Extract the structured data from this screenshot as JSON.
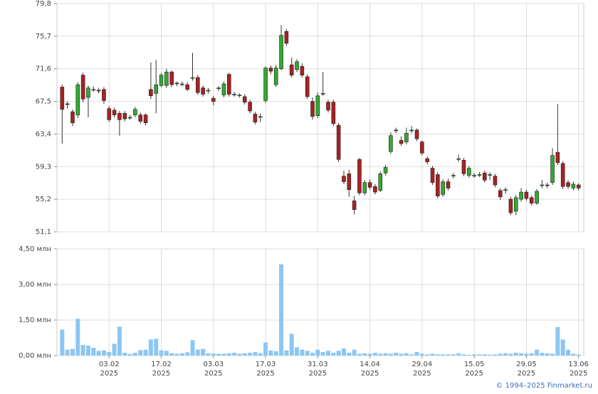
{
  "chart_data": {
    "type": "candlestick",
    "up_color": "#33a833",
    "down_color": "#a82222",
    "volume_color": "#8cc6f2",
    "grid": true,
    "xlim": [
      -1,
      100
    ],
    "xticks": [
      {
        "value": 9,
        "label": "03.02",
        "sublabel": "2025"
      },
      {
        "value": 19,
        "label": "17.02",
        "sublabel": "2025"
      },
      {
        "value": 29,
        "label": "03.03",
        "sublabel": "2025"
      },
      {
        "value": 39,
        "label": "17.03",
        "sublabel": "2025"
      },
      {
        "value": 49,
        "label": "31.03",
        "sublabel": "2025"
      },
      {
        "value": 59,
        "label": "14.04",
        "sublabel": "2025"
      },
      {
        "value": 69,
        "label": "29.04",
        "sublabel": "2025"
      },
      {
        "value": 79,
        "label": "15.05",
        "sublabel": "2025"
      },
      {
        "value": 89,
        "label": "29.05",
        "sublabel": "2025"
      },
      {
        "value": 99,
        "label": "13.06",
        "sublabel": "2025"
      }
    ],
    "ylim": [
      51.1,
      79.8
    ],
    "yticks": [
      {
        "value": 79.8,
        "label": "79,8"
      },
      {
        "value": 75.7,
        "label": "75,7"
      },
      {
        "value": 71.6,
        "label": "71,6"
      },
      {
        "value": 67.5,
        "label": "67,5"
      },
      {
        "value": 63.4,
        "label": "63,4"
      },
      {
        "value": 59.3,
        "label": "59,3"
      },
      {
        "value": 55.2,
        "label": "55,2"
      },
      {
        "value": 51.1,
        "label": "51,1"
      }
    ],
    "y2lim": [
      0,
      4.5
    ],
    "y2ticks": [
      {
        "value": 4.5,
        "label": "4,50 млн"
      },
      {
        "value": 3,
        "label": "3,00 млн"
      },
      {
        "value": 1.5,
        "label": "1,50 млн"
      },
      {
        "value": 0,
        "label": "0,00 млн"
      }
    ],
    "open": [
      69.3,
      67.2,
      66.2,
      65.8,
      70.8,
      68.0,
      69.0,
      68.9,
      69.0,
      66.6,
      66.4,
      66.0,
      66.0,
      65.4,
      65.8,
      65.8,
      65.8,
      69.0,
      68.5,
      69.5,
      69.5,
      71.2,
      69.8,
      69.6,
      69.6,
      70.4,
      70.5,
      69.2,
      68.8,
      67.9,
      69.1,
      68.3,
      70.9,
      68.3,
      68.2,
      68.1,
      67.4,
      65.9,
      65.5,
      67.6,
      71.7,
      69.6,
      71.6,
      76.3,
      72.1,
      71.5,
      71.9,
      70.6,
      67.5,
      65.7,
      68.4,
      67.4,
      67.4,
      64.5,
      58.1,
      58.4,
      55.0,
      60.2,
      56.0,
      57.3,
      56.8,
      56.3,
      58.5,
      61.2,
      63.9,
      62.6,
      62.4,
      63.8,
      63.9,
      62.4,
      60.3,
      59.1,
      58.3,
      55.8,
      57.4,
      58.1,
      60.2,
      60.1,
      58.2,
      58.1,
      58.2,
      58.5,
      58.2,
      58.1,
      56.3,
      56.3,
      55.2,
      53.7,
      55.2,
      56.1,
      55.4,
      54.7,
      56.9,
      57.0,
      57.3,
      61.1,
      59.7,
      57.3,
      56.6,
      57.0
    ],
    "high": [
      69.6,
      67.5,
      66.5,
      69.9,
      71.1,
      69.5,
      69.4,
      69.2,
      69.3,
      66.9,
      66.7,
      66.3,
      66.3,
      65.8,
      66.8,
      66.1,
      66.0,
      72.4,
      72.7,
      71.1,
      71.6,
      71.4,
      70.0,
      70.0,
      69.9,
      73.6,
      70.8,
      69.5,
      69.2,
      68.2,
      69.4,
      70.0,
      71.1,
      68.7,
      68.5,
      68.4,
      67.7,
      66.2,
      66.0,
      71.9,
      72.0,
      72.1,
      77.1,
      76.6,
      73.0,
      72.8,
      72.3,
      70.9,
      68.0,
      68.6,
      71.2,
      67.7,
      67.7,
      64.8,
      58.8,
      58.9,
      55.6,
      60.4,
      57.6,
      57.7,
      57.1,
      58.7,
      59.5,
      63.6,
      64.2,
      63.1,
      64.2,
      64.4,
      64.1,
      62.6,
      60.6,
      59.4,
      58.6,
      57.7,
      57.8,
      58.5,
      60.8,
      60.4,
      59.4,
      58.5,
      58.6,
      58.8,
      58.6,
      58.4,
      56.6,
      56.7,
      55.5,
      55.7,
      56.6,
      56.4,
      55.7,
      56.5,
      57.6,
      57.3,
      61.6,
      67.2,
      60.0,
      57.6,
      57.4,
      57.2
    ],
    "low": [
      62.2,
      66.6,
      64.4,
      65.4,
      67.4,
      65.5,
      68.7,
      68.5,
      67.2,
      64.9,
      65.5,
      63.2,
      65.0,
      65.2,
      65.5,
      64.7,
      64.5,
      67.8,
      66.0,
      69.3,
      69.2,
      69.3,
      69.4,
      69.4,
      68.8,
      70.1,
      68.3,
      68.1,
      68.5,
      67.0,
      68.8,
      68.0,
      68.1,
      68.1,
      68.0,
      67.1,
      66.0,
      64.6,
      64.9,
      67.3,
      70.9,
      69.3,
      71.4,
      74.5,
      70.5,
      71.2,
      70.5,
      67.8,
      65.2,
      65.4,
      68.2,
      66.1,
      64.4,
      59.9,
      57.1,
      55.5,
      53.3,
      55.7,
      55.7,
      56.4,
      55.8,
      56.1,
      58.2,
      60.9,
      63.5,
      61.9,
      62.1,
      63.5,
      62.5,
      60.7,
      59.6,
      57.0,
      55.3,
      55.5,
      56.3,
      57.8,
      59.9,
      58.1,
      57.9,
      57.9,
      58.0,
      57.3,
      57.6,
      56.7,
      55.1,
      55.9,
      53.2,
      53.2,
      54.9,
      55.0,
      54.4,
      54.5,
      56.6,
      56.6,
      57.0,
      59.5,
      56.5,
      56.5,
      56.3,
      56.3
    ],
    "close": [
      66.5,
      67.1,
      64.8,
      69.6,
      67.8,
      69.2,
      69.0,
      68.8,
      67.6,
      65.2,
      65.8,
      65.2,
      65.3,
      65.5,
      66.5,
      65.0,
      64.8,
      68.2,
      69.6,
      70.8,
      71.2,
      69.6,
      69.7,
      69.7,
      69.0,
      70.5,
      68.6,
      68.4,
      68.9,
      67.5,
      69.2,
      69.7,
      68.4,
      68.4,
      68.3,
      67.4,
      66.3,
      64.9,
      65.6,
      71.7,
      71.3,
      71.7,
      75.8,
      74.8,
      70.8,
      72.5,
      70.8,
      68.1,
      65.6,
      68.2,
      68.5,
      66.4,
      64.7,
      60.2,
      57.4,
      56.4,
      53.9,
      56.0,
      57.3,
      56.7,
      56.1,
      58.4,
      59.2,
      63.2,
      63.8,
      62.2,
      63.5,
      63.9,
      62.8,
      61.0,
      59.9,
      57.3,
      55.6,
      57.4,
      56.6,
      58.2,
      60.3,
      58.4,
      59.1,
      58.2,
      58.3,
      57.6,
      58.3,
      57.0,
      55.5,
      56.4,
      53.5,
      55.4,
      56.1,
      55.3,
      54.7,
      56.2,
      57.0,
      56.9,
      60.7,
      59.8,
      56.8,
      56.8,
      57.1,
      56.6
    ],
    "volume": [
      1.1,
      0.25,
      0.28,
      1.55,
      0.45,
      0.42,
      0.33,
      0.2,
      0.22,
      0.15,
      0.5,
      1.22,
      0.12,
      0.07,
      0.12,
      0.23,
      0.25,
      0.68,
      0.71,
      0.22,
      0.2,
      0.1,
      0.08,
      0.1,
      0.14,
      0.65,
      0.25,
      0.28,
      0.1,
      0.08,
      0.08,
      0.08,
      0.1,
      0.12,
      0.08,
      0.1,
      0.12,
      0.15,
      0.1,
      0.55,
      0.22,
      0.18,
      3.85,
      0.22,
      0.92,
      0.35,
      0.25,
      0.2,
      0.12,
      0.25,
      0.15,
      0.2,
      0.12,
      0.2,
      0.3,
      0.12,
      0.25,
      0.08,
      0.1,
      0.08,
      0.12,
      0.08,
      0.1,
      0.08,
      0.12,
      0.08,
      0.1,
      0.05,
      0.15,
      0.08,
      0.05,
      0.08,
      0.05,
      0.05,
      0.05,
      0.05,
      0.1,
      0.05,
      0.03,
      0.05,
      0.05,
      0.05,
      0.04,
      0.05,
      0.08,
      0.1,
      0.08,
      0.12,
      0.1,
      0.08,
      0.1,
      0.25,
      0.12,
      0.1,
      0.08,
      1.2,
      0.68,
      0.25,
      0.08,
      0.05
    ]
  },
  "footer": {
    "copyright": "© 1994–2025 Finmarket.ru"
  }
}
